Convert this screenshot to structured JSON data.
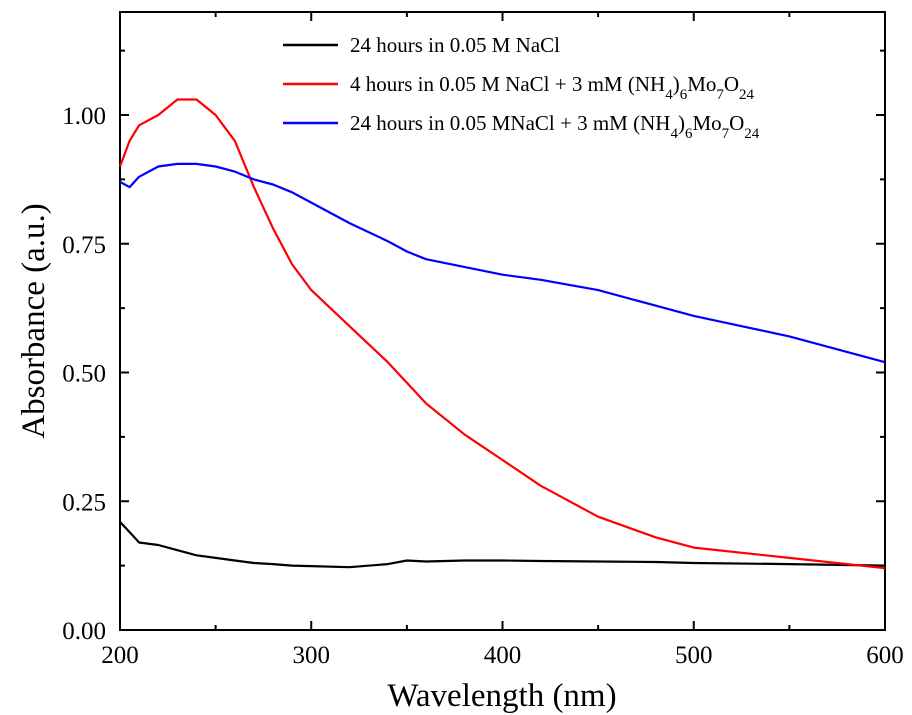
{
  "chart_data": {
    "type": "line",
    "title": "",
    "xlabel": "Wavelength (nm)",
    "ylabel": "Absorbance (a.u.)",
    "xlim": [
      200,
      600
    ],
    "ylim": [
      0.0,
      1.2
    ],
    "x_ticks": [
      "200",
      "300",
      "400",
      "500",
      "600"
    ],
    "y_ticks": [
      "0.00",
      "0.25",
      "0.50",
      "0.75",
      "1.00"
    ],
    "grid": false,
    "legend_position": "top-right",
    "x": [
      200,
      205,
      210,
      220,
      230,
      240,
      250,
      260,
      270,
      280,
      290,
      300,
      320,
      340,
      350,
      360,
      380,
      400,
      420,
      450,
      480,
      500,
      550,
      600
    ],
    "series": [
      {
        "name": "24 hours in 0.05 M NaCl",
        "color": "#000000",
        "values": [
          0.21,
          0.19,
          0.17,
          0.165,
          0.155,
          0.145,
          0.14,
          0.135,
          0.13,
          0.128,
          0.125,
          0.124,
          0.122,
          0.128,
          0.135,
          0.133,
          0.135,
          0.135,
          0.134,
          0.133,
          0.132,
          0.13,
          0.128,
          0.125
        ]
      },
      {
        "name": "4 hours in 0.05 M NaCl + 3 mM (NH4)6Mo7O24",
        "name_parts": [
          "4 hours in 0.05 M NaCl + 3 mM (NH",
          "4",
          ")",
          "6",
          "Mo",
          "7",
          "O",
          "24"
        ],
        "color": "#ff0000",
        "values": [
          0.9,
          0.95,
          0.98,
          1.0,
          1.03,
          1.03,
          1.0,
          0.95,
          0.86,
          0.78,
          0.71,
          0.66,
          0.59,
          0.52,
          0.48,
          0.44,
          0.38,
          0.33,
          0.28,
          0.22,
          0.18,
          0.16,
          0.14,
          0.12
        ]
      },
      {
        "name": "24 hours in 0.05 MNaCl + 3 mM (NH4)6Mo7O24",
        "name_parts": [
          "24 hours in 0.05 MNaCl + 3 mM (NH",
          "4",
          ")",
          "6",
          "Mo",
          "7",
          "O",
          "24"
        ],
        "color": "#0000ff",
        "values": [
          0.87,
          0.86,
          0.88,
          0.9,
          0.905,
          0.905,
          0.9,
          0.89,
          0.875,
          0.865,
          0.85,
          0.83,
          0.79,
          0.755,
          0.735,
          0.72,
          0.705,
          0.69,
          0.68,
          0.66,
          0.63,
          0.61,
          0.57,
          0.52
        ]
      }
    ]
  }
}
